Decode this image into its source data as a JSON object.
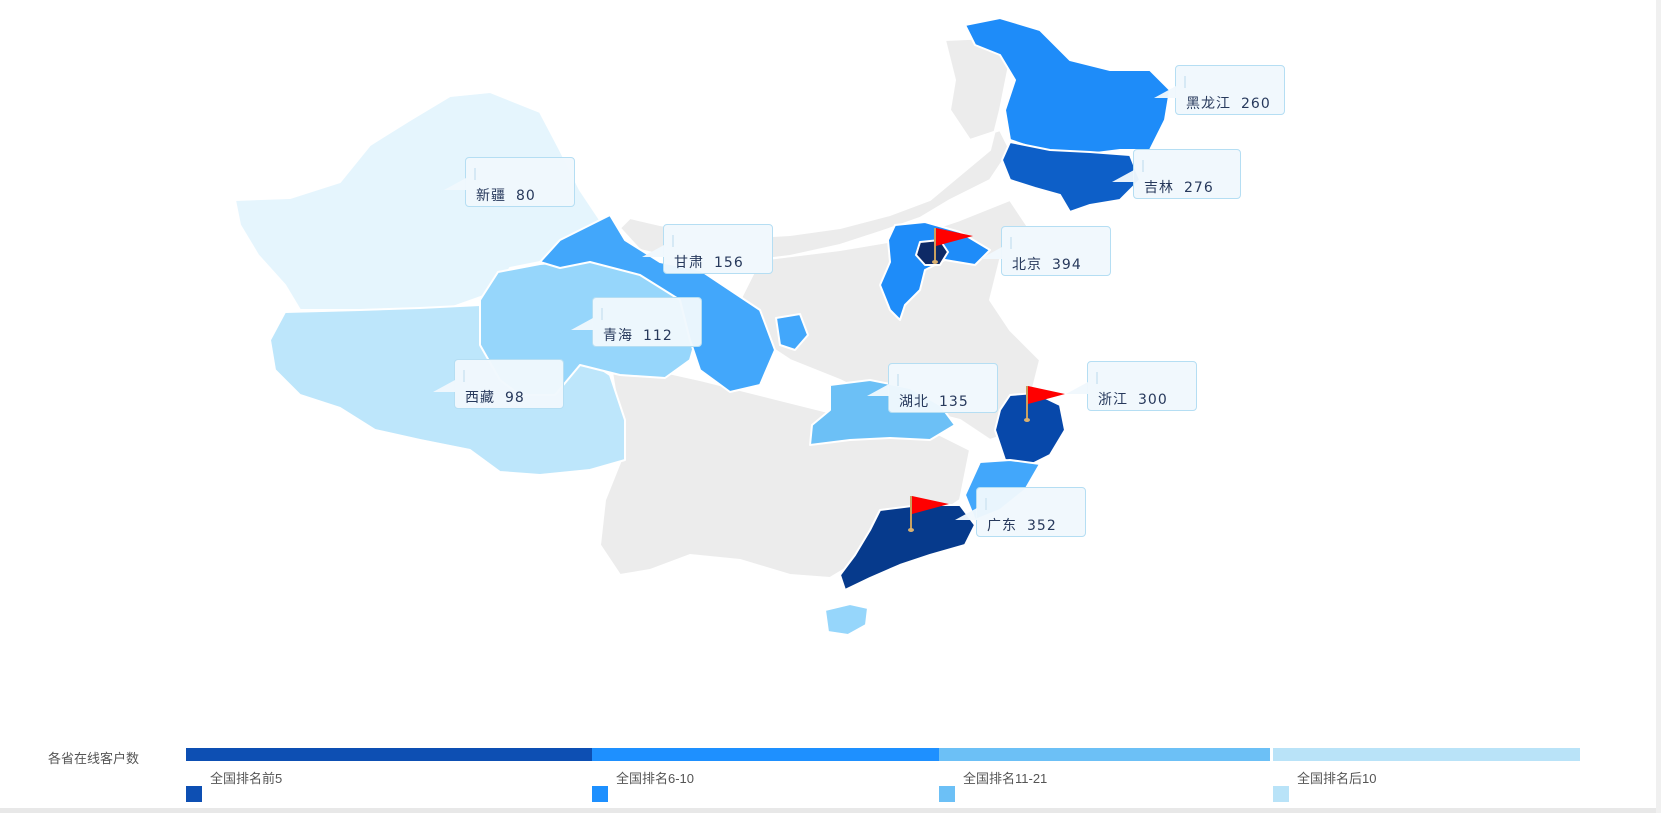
{
  "legend": {
    "title": "各省在线客户数",
    "categories": [
      {
        "label": "全国排名前5",
        "color": "#0d4fb3"
      },
      {
        "label": "全国排名6-10",
        "color": "#1e90ff"
      },
      {
        "label": "全国排名11-21",
        "color": "#6cc0f6"
      },
      {
        "label": "全国排名后10",
        "color": "#b9e3f8"
      }
    ]
  },
  "callouts": [
    {
      "id": "heilongjiang",
      "name": "黑龙江",
      "value": "260"
    },
    {
      "id": "jilin",
      "name": "吉林",
      "value": "276"
    },
    {
      "id": "xinjiang",
      "name": "新疆",
      "value": "80"
    },
    {
      "id": "gansu",
      "name": "甘肃",
      "value": "156"
    },
    {
      "id": "beijing",
      "name": "北京",
      "value": "394"
    },
    {
      "id": "qinghai",
      "name": "青海",
      "value": "112"
    },
    {
      "id": "xizang",
      "name": "西藏",
      "value": "98"
    },
    {
      "id": "hubei",
      "name": "湖北",
      "value": "135"
    },
    {
      "id": "zhejiang",
      "name": "浙江",
      "value": "300"
    },
    {
      "id": "guangdong",
      "name": "广东",
      "value": "352"
    }
  ],
  "flagged": [
    "北京",
    "浙江",
    "广东"
  ],
  "colors": {
    "background_region": "#ececec",
    "region_border": "#ffffff",
    "flag": "#ff0000",
    "top1": "#033a8c"
  }
}
